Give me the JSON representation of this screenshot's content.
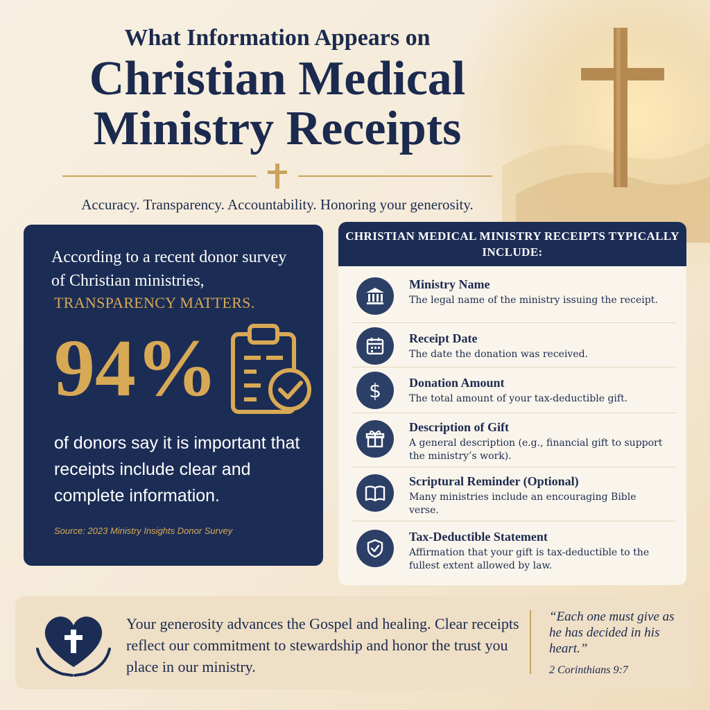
{
  "header": {
    "title_top": "What Information Appears on",
    "title_line1": "Christian Medical",
    "title_line2": "Ministry Receipts",
    "tagline": "Accuracy. Transparency. Accountability. Honoring your generosity."
  },
  "stat": {
    "intro": "According to a recent donor survey of Christian ministries,",
    "highlight": "TRANSPARENCY MATTERS.",
    "number": "94%",
    "description": "of donors say it is important that receipts include clear and complete information.",
    "source": "Source: 2023 Ministry Insights Donor Survey"
  },
  "receipt_list": {
    "header": "CHRISTIAN MEDICAL MINISTRY RECEIPTS TYPICALLY INCLUDE:",
    "items": [
      {
        "title": "Ministry Name",
        "description": "The legal name of the ministry issuing the receipt.",
        "icon": "building-icon"
      },
      {
        "title": "Receipt Date",
        "description": "The date the donation was received.",
        "icon": "calendar-icon"
      },
      {
        "title": "Donation Amount",
        "description": "The total amount of your tax-deductible gift.",
        "icon": "dollar-icon"
      },
      {
        "title": "Description of Gift",
        "description": "A general description (e.g., financial gift to support the ministry’s work).",
        "icon": "gift-icon"
      },
      {
        "title": "Scriptural Reminder (Optional)",
        "description": "Many ministries include an encouraging Bible verse.",
        "icon": "bible-icon"
      },
      {
        "title": "Tax-Deductible Statement",
        "description": "Affirmation that your gift is tax-deductible to the fullest extent allowed by law.",
        "icon": "shield-check-icon"
      }
    ]
  },
  "banner": {
    "text": "Your generosity advances the Gospel and healing. Clear receipts reflect our commitment to stewardship and honor the trust you place in our ministry.",
    "verse": "“Each one must give as he has decided in his heart.”",
    "verse_ref": "2 Corinthians 9:7"
  },
  "colors": {
    "navy": "#1c2d55",
    "gold": "#d8a955",
    "cream": "#f5ead8"
  }
}
